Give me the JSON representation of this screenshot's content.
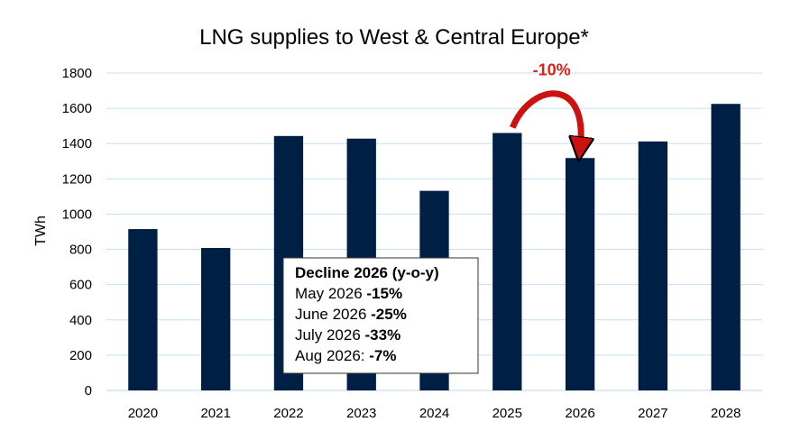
{
  "chart_data": {
    "type": "bar",
    "title": "LNG supplies to West & Central Europe*",
    "xlabel": "",
    "ylabel": "TWh",
    "categories": [
      "2020",
      "2021",
      "2022",
      "2023",
      "2024",
      "2025",
      "2026",
      "2027",
      "2028"
    ],
    "values": [
      915,
      808,
      1443,
      1428,
      1132,
      1460,
      1318,
      1412,
      1625
    ],
    "ylim": [
      0,
      1800
    ],
    "yticks": [
      "0",
      "200",
      "400",
      "600",
      "800",
      "1000",
      "1200",
      "1400",
      "1600",
      "1800"
    ],
    "grid": true,
    "bar_color": "#001f45",
    "grid_color": "#c9dff0",
    "annotation": {
      "text": "-10%",
      "color": "#e32119",
      "arrow_color": "#cc1111",
      "from": "2025",
      "to": "2026"
    },
    "info_box": {
      "heading": "Decline 2026 (y-o-y)",
      "rows": [
        {
          "label": "May 2026 ",
          "value": "-15%"
        },
        {
          "label": "June 2026 ",
          "value": "-25%"
        },
        {
          "label": "July 2026 ",
          "value": "-33%"
        },
        {
          "label": "Aug 2026: ",
          "value": "-7%"
        }
      ]
    }
  }
}
